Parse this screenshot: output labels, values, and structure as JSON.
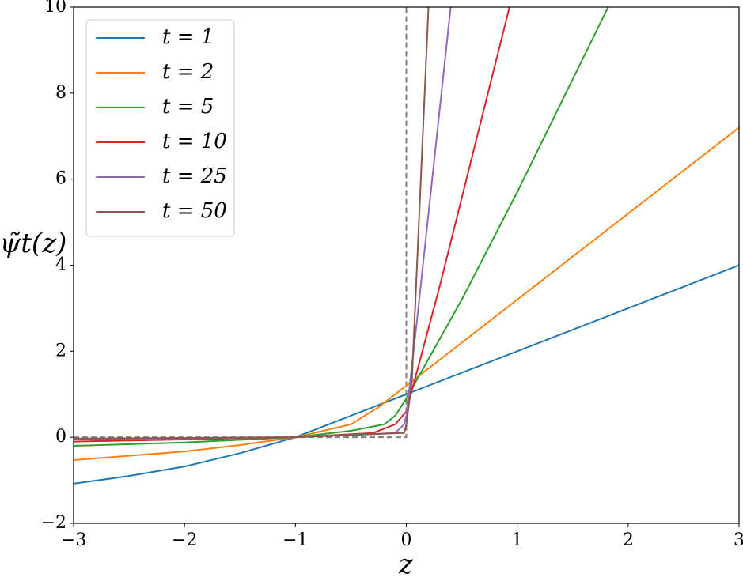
{
  "chart_data": {
    "type": "line",
    "x_label": "z",
    "y_label": "ψ̃t(z)",
    "xlim": [
      -3,
      3
    ],
    "ylim": [
      -2,
      10
    ],
    "xticks": [
      {
        "value": -3,
        "label": "−3"
      },
      {
        "value": -2,
        "label": "−2"
      },
      {
        "value": -1,
        "label": "−1"
      },
      0,
      1,
      2,
      3
    ],
    "yticks": [
      {
        "value": -2,
        "label": "−2"
      },
      0,
      2,
      4,
      6,
      8,
      10
    ],
    "legend": "upper left",
    "series": [
      {
        "name": "t = 1",
        "color": "#1f77b4",
        "x": [
          -3,
          -2.5,
          -2,
          -1.5,
          -1,
          -0.5,
          0,
          3
        ],
        "values": [
          -1.08,
          -0.9,
          -0.68,
          -0.37,
          0,
          0.5,
          1,
          4
        ]
      },
      {
        "name": "t = 2",
        "color": "#ff7f0e",
        "x": [
          -3,
          -2,
          -1.5,
          -1,
          -0.5,
          -0.25,
          -0.1,
          0,
          1,
          2,
          3
        ],
        "values": [
          -0.53,
          -0.33,
          -0.18,
          0,
          0.3,
          0.7,
          1.0,
          1.2,
          3.2,
          5.2,
          7.2
        ]
      },
      {
        "name": "t = 5",
        "color": "#2ca02c",
        "x": [
          -3,
          -2,
          -1,
          -0.5,
          -0.2,
          -0.1,
          0,
          0.5,
          1,
          1.82
        ],
        "values": [
          -0.2,
          -0.12,
          0,
          0.15,
          0.3,
          0.5,
          0.9,
          3.2,
          5.7,
          10
        ]
      },
      {
        "name": "t = 10",
        "color": "#d62728",
        "x": [
          -3,
          -1,
          -0.3,
          -0.1,
          0,
          0.3,
          0.93
        ],
        "values": [
          -0.1,
          0,
          0.1,
          0.3,
          0.6,
          3.5,
          10
        ]
      },
      {
        "name": "t = 25",
        "color": "#9467bd",
        "x": [
          -3,
          -1,
          -0.1,
          -0.02,
          0,
          0.1,
          0.4
        ],
        "values": [
          -0.05,
          0,
          0.1,
          0.3,
          0.5,
          2.8,
          10
        ]
      },
      {
        "name": "t = 50",
        "color": "#8c564b",
        "x": [
          -3,
          -1,
          -0.02,
          0,
          0.05,
          0.2
        ],
        "values": [
          -0.03,
          0,
          0.1,
          0.3,
          1.3,
          10
        ]
      }
    ],
    "reference": {
      "color": "#808080",
      "x": [
        -3,
        0,
        0
      ],
      "values": [
        0,
        0,
        10
      ]
    }
  }
}
